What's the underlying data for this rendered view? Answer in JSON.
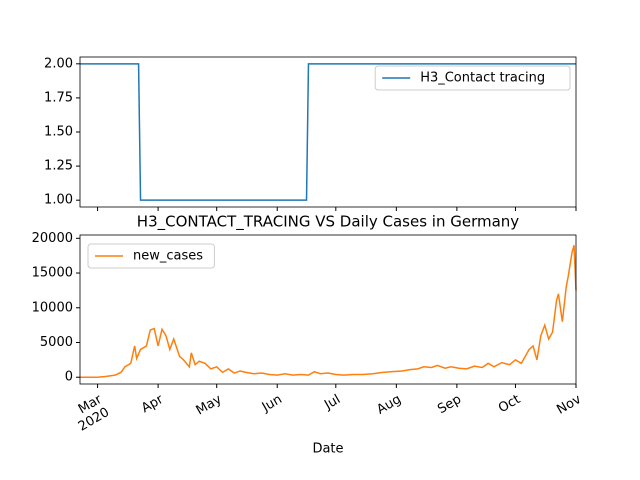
{
  "chart_data": [
    {
      "type": "line",
      "x": [
        "2020-02-21",
        "2020-03-22",
        "2020-03-23",
        "2020-06-16",
        "2020-06-17",
        "2020-11-01"
      ],
      "series": [
        {
          "name": "H3_Contact tracing",
          "color": "#1f77b4",
          "values": [
            2,
            2,
            1,
            1,
            2,
            2
          ]
        }
      ],
      "xlim": [
        "2020-02-21",
        "2020-11-01"
      ],
      "xticks": [
        "2020-03-01",
        "2020-04-01",
        "2020-05-01",
        "2020-06-01",
        "2020-07-01",
        "2020-08-01",
        "2020-09-01",
        "2020-10-01",
        "2020-11-01"
      ],
      "ylim": [
        0.95,
        2.05
      ],
      "yticks": [
        {
          "value": 1,
          "label": "1.00"
        },
        {
          "value": 1.25,
          "label": "1.25"
        },
        {
          "value": 1.5,
          "label": "1.50"
        },
        {
          "value": 1.75,
          "label": "1.75"
        },
        {
          "value": 2,
          "label": "2.00"
        }
      ],
      "legend": "upper right"
    },
    {
      "type": "line",
      "title": "H3_CONTACT_TRACING VS Daily Cases in Germany",
      "xlabel": "Date",
      "x": [
        "2020-02-21",
        "2020-03-01",
        "2020-03-05",
        "2020-03-10",
        "2020-03-13",
        "2020-03-15",
        "2020-03-18",
        "2020-03-20",
        "2020-03-21",
        "2020-03-23",
        "2020-03-26",
        "2020-03-28",
        "2020-03-30",
        "2020-04-01",
        "2020-04-03",
        "2020-04-05",
        "2020-04-07",
        "2020-04-09",
        "2020-04-12",
        "2020-04-14",
        "2020-04-17",
        "2020-04-18",
        "2020-04-20",
        "2020-04-22",
        "2020-04-25",
        "2020-04-28",
        "2020-05-01",
        "2020-05-04",
        "2020-05-07",
        "2020-05-10",
        "2020-05-13",
        "2020-05-16",
        "2020-05-20",
        "2020-05-24",
        "2020-05-28",
        "2020-06-01",
        "2020-06-05",
        "2020-06-09",
        "2020-06-13",
        "2020-06-17",
        "2020-06-20",
        "2020-06-23",
        "2020-06-27",
        "2020-07-01",
        "2020-07-05",
        "2020-07-10",
        "2020-07-15",
        "2020-07-20",
        "2020-07-25",
        "2020-07-30",
        "2020-08-04",
        "2020-08-08",
        "2020-08-12",
        "2020-08-15",
        "2020-08-19",
        "2020-08-22",
        "2020-08-26",
        "2020-08-29",
        "2020-09-02",
        "2020-09-06",
        "2020-09-10",
        "2020-09-14",
        "2020-09-17",
        "2020-09-20",
        "2020-09-24",
        "2020-09-28",
        "2020-10-01",
        "2020-10-04",
        "2020-10-08",
        "2020-10-10",
        "2020-10-12",
        "2020-10-14",
        "2020-10-16",
        "2020-10-18",
        "2020-10-20",
        "2020-10-22",
        "2020-10-23",
        "2020-10-25",
        "2020-10-27",
        "2020-10-28",
        "2020-10-30",
        "2020-10-31",
        "2020-11-01"
      ],
      "series": [
        {
          "name": "new_cases",
          "color": "#ff7f0e",
          "values": [
            0,
            0,
            100,
            300,
            700,
            1500,
            2000,
            4500,
            2700,
            4000,
            4500,
            6800,
            7000,
            4500,
            6900,
            6000,
            4000,
            5500,
            3000,
            2500,
            1500,
            3500,
            1800,
            2300,
            2000,
            1200,
            1500,
            700,
            1200,
            600,
            900,
            700,
            500,
            600,
            400,
            300,
            500,
            300,
            400,
            300,
            800,
            500,
            600,
            400,
            300,
            400,
            400,
            500,
            700,
            800,
            900,
            1100,
            1200,
            1500,
            1400,
            1700,
            1300,
            1500,
            1300,
            1200,
            1600,
            1400,
            2000,
            1500,
            2100,
            1800,
            2500,
            2000,
            4000,
            4500,
            2500,
            6000,
            7500,
            5500,
            6500,
            11000,
            12000,
            8000,
            13000,
            14500,
            18000,
            19000,
            12500
          ]
        }
      ],
      "xlim": [
        "2020-02-21",
        "2020-11-01"
      ],
      "xticks": [
        {
          "value": "2020-03-01",
          "label": "Mar\n2020"
        },
        {
          "value": "2020-04-01",
          "label": "Apr"
        },
        {
          "value": "2020-05-01",
          "label": "May"
        },
        {
          "value": "2020-06-01",
          "label": "Jun"
        },
        {
          "value": "2020-07-01",
          "label": "Jul"
        },
        {
          "value": "2020-08-01",
          "label": "Aug"
        },
        {
          "value": "2020-09-01",
          "label": "Sep"
        },
        {
          "value": "2020-10-01",
          "label": "Oct"
        },
        {
          "value": "2020-11-01",
          "label": "Nov"
        }
      ],
      "ylim": [
        -975,
        20475
      ],
      "yticks": [
        0,
        5000,
        10000,
        15000,
        20000
      ],
      "legend": "upper left"
    }
  ]
}
